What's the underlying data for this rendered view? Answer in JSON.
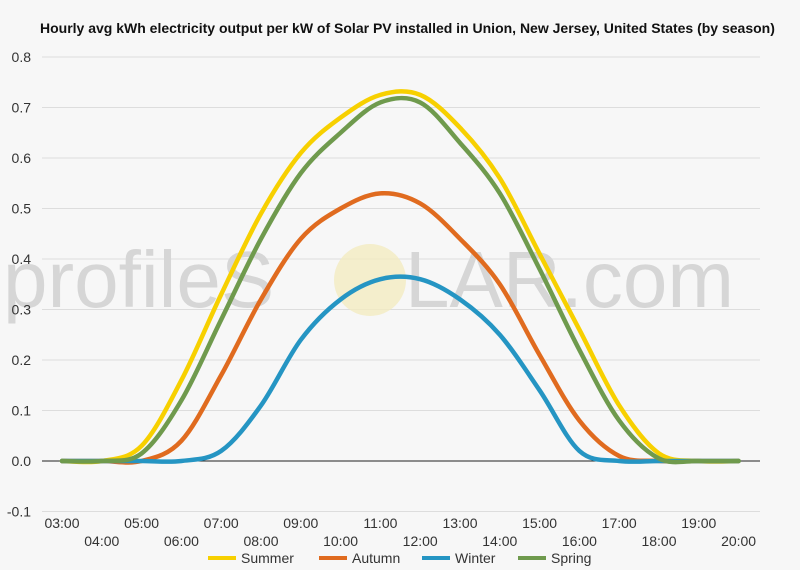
{
  "chart_data": {
    "type": "line",
    "title": "Hourly avg kWh electricity output per kW of Solar PV installed in Union, New Jersey, United States (by season)",
    "xlabel": "",
    "ylabel": "",
    "x": [
      "03:00",
      "04:00",
      "05:00",
      "06:00",
      "07:00",
      "08:00",
      "09:00",
      "10:00",
      "11:00",
      "12:00",
      "13:00",
      "14:00",
      "15:00",
      "16:00",
      "17:00",
      "18:00",
      "19:00",
      "20:00"
    ],
    "ylim": [
      -0.1,
      0.8
    ],
    "yticks": [
      "0.8",
      "0.7",
      "0.6",
      "0.5",
      "0.4",
      "0.3",
      "0.2",
      "0.1",
      "0.0",
      "-0.1"
    ],
    "series": [
      {
        "name": "Summer",
        "color": "#f7d000",
        "values": [
          0,
          0,
          0.03,
          0.16,
          0.33,
          0.49,
          0.61,
          0.68,
          0.725,
          0.725,
          0.66,
          0.56,
          0.41,
          0.26,
          0.11,
          0.015,
          0,
          0
        ]
      },
      {
        "name": "Autumn",
        "color": "#e06b1f",
        "values": [
          0,
          0,
          0,
          0.04,
          0.17,
          0.32,
          0.44,
          0.5,
          0.53,
          0.51,
          0.44,
          0.35,
          0.21,
          0.08,
          0.01,
          0,
          0,
          0
        ]
      },
      {
        "name": "Winter",
        "color": "#2595c3",
        "values": [
          0,
          0,
          0,
          0,
          0.02,
          0.11,
          0.24,
          0.32,
          0.36,
          0.36,
          0.32,
          0.25,
          0.14,
          0.02,
          0,
          0,
          0,
          0
        ]
      },
      {
        "name": "Spring",
        "color": "#6f9a4d",
        "values": [
          0,
          0,
          0.015,
          0.12,
          0.28,
          0.44,
          0.57,
          0.65,
          0.71,
          0.71,
          0.63,
          0.53,
          0.38,
          0.22,
          0.08,
          0.005,
          0,
          0
        ]
      }
    ],
    "grid": true,
    "legend": "bottom"
  },
  "watermark": {
    "left": "profileS",
    "right": "LAR.com"
  }
}
